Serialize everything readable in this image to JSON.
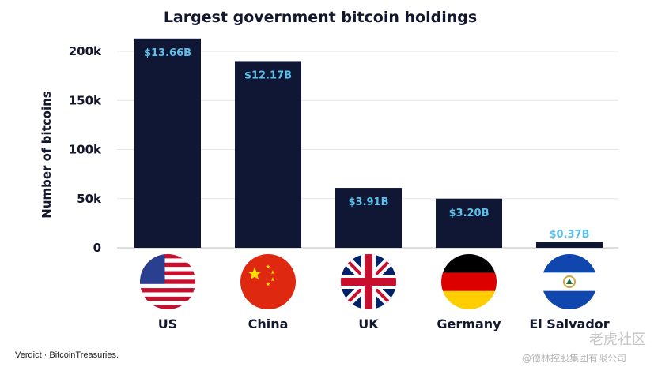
{
  "chart_data": {
    "type": "bar",
    "title": "Largest government bitcoin holdings",
    "xlabel": "",
    "ylabel": "Number of bitcoins",
    "ylim": [
      0,
      215000
    ],
    "yticks": [
      0,
      50000,
      100000,
      150000,
      200000
    ],
    "ytick_labels": [
      "0",
      "50k",
      "100k",
      "150k",
      "200k"
    ],
    "grid": true,
    "categories": [
      "US",
      "China",
      "UK",
      "Germany",
      "El Salvador"
    ],
    "values": [
      213000,
      190000,
      61000,
      50000,
      5800
    ],
    "data_labels": [
      "$13.66B",
      "$12.17B",
      "$3.91B",
      "$3.20B",
      "$0.37B"
    ],
    "flags": [
      "us-flag",
      "china-flag",
      "uk-flag",
      "germany-flag",
      "el-salvador-flag"
    ],
    "colors": {
      "bar": "#0f1735",
      "label": "#5bc0ea",
      "text": "#13182e"
    }
  },
  "source": "Verdict  ·  BitcoinTreasuries.",
  "watermark": {
    "line1": "老虎社区",
    "line2": "@德林控股集团有限公司"
  }
}
